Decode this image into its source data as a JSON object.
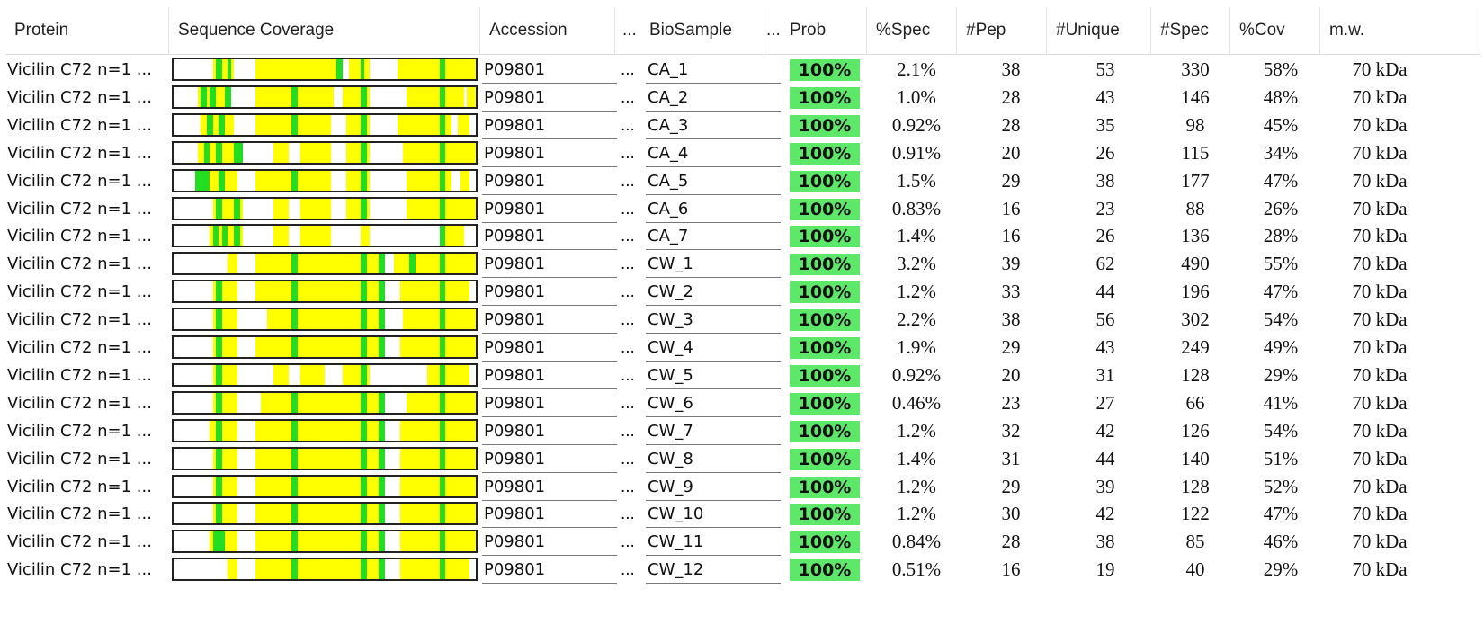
{
  "columns": {
    "protein": "Protein",
    "coverage": "Sequence Coverage",
    "accession": "Accession",
    "ellipsis1": "...",
    "biosample": "BioSample",
    "ellipsis2": "...",
    "prob": "Prob",
    "spec_pct": "%Spec",
    "pep": "#Pep",
    "unique": "#Unique",
    "spec": "#Spec",
    "cov": "%Cov",
    "mw": "m.w."
  },
  "colors": {
    "coverage_yellow": "#ffff00",
    "coverage_green": "#22dd22",
    "prob_green": "#5ee86a"
  },
  "rows": [
    {
      "protein": "Vicilin C72 n=1 ...",
      "accession": "P09801",
      "dots": "...",
      "biosample": "CA_1",
      "prob": "100%",
      "spec_pct": "2.1%",
      "pep": "38",
      "unique": "53",
      "spec": "330",
      "cov": "58%",
      "mw": "70 kDa"
    },
    {
      "protein": "Vicilin C72 n=1 ...",
      "accession": "P09801",
      "dots": "...",
      "biosample": "CA_2",
      "prob": "100%",
      "spec_pct": "1.0%",
      "pep": "28",
      "unique": "43",
      "spec": "146",
      "cov": "48%",
      "mw": "70 kDa"
    },
    {
      "protein": "Vicilin C72 n=1 ...",
      "accession": "P09801",
      "dots": "...",
      "biosample": "CA_3",
      "prob": "100%",
      "spec_pct": "0.92%",
      "pep": "28",
      "unique": "35",
      "spec": "98",
      "cov": "45%",
      "mw": "70 kDa"
    },
    {
      "protein": "Vicilin C72 n=1 ...",
      "accession": "P09801",
      "dots": "...",
      "biosample": "CA_4",
      "prob": "100%",
      "spec_pct": "0.91%",
      "pep": "20",
      "unique": "26",
      "spec": "115",
      "cov": "34%",
      "mw": "70 kDa"
    },
    {
      "protein": "Vicilin C72 n=1 ...",
      "accession": "P09801",
      "dots": "...",
      "biosample": "CA_5",
      "prob": "100%",
      "spec_pct": "1.5%",
      "pep": "29",
      "unique": "38",
      "spec": "177",
      "cov": "47%",
      "mw": "70 kDa"
    },
    {
      "protein": "Vicilin C72 n=1 ...",
      "accession": "P09801",
      "dots": "...",
      "biosample": "CA_6",
      "prob": "100%",
      "spec_pct": "0.83%",
      "pep": "16",
      "unique": "23",
      "spec": "88",
      "cov": "26%",
      "mw": "70 kDa"
    },
    {
      "protein": "Vicilin C72 n=1 ...",
      "accession": "P09801",
      "dots": "...",
      "biosample": "CA_7",
      "prob": "100%",
      "spec_pct": "1.4%",
      "pep": "16",
      "unique": "26",
      "spec": "136",
      "cov": "28%",
      "mw": "70 kDa"
    },
    {
      "protein": "Vicilin C72 n=1 ...",
      "accession": "P09801",
      "dots": "...",
      "biosample": "CW_1",
      "prob": "100%",
      "spec_pct": "3.2%",
      "pep": "39",
      "unique": "62",
      "spec": "490",
      "cov": "55%",
      "mw": "70 kDa"
    },
    {
      "protein": "Vicilin C72 n=1 ...",
      "accession": "P09801",
      "dots": "...",
      "biosample": "CW_2",
      "prob": "100%",
      "spec_pct": "1.2%",
      "pep": "33",
      "unique": "44",
      "spec": "196",
      "cov": "47%",
      "mw": "70 kDa"
    },
    {
      "protein": "Vicilin C72 n=1 ...",
      "accession": "P09801",
      "dots": "...",
      "biosample": "CW_3",
      "prob": "100%",
      "spec_pct": "2.2%",
      "pep": "38",
      "unique": "56",
      "spec": "302",
      "cov": "54%",
      "mw": "70 kDa"
    },
    {
      "protein": "Vicilin C72 n=1 ...",
      "accession": "P09801",
      "dots": "...",
      "biosample": "CW_4",
      "prob": "100%",
      "spec_pct": "1.9%",
      "pep": "29",
      "unique": "43",
      "spec": "249",
      "cov": "49%",
      "mw": "70 kDa"
    },
    {
      "protein": "Vicilin C72 n=1 ...",
      "accession": "P09801",
      "dots": "...",
      "biosample": "CW_5",
      "prob": "100%",
      "spec_pct": "0.92%",
      "pep": "20",
      "unique": "31",
      "spec": "128",
      "cov": "29%",
      "mw": "70 kDa"
    },
    {
      "protein": "Vicilin C72 n=1 ...",
      "accession": "P09801",
      "dots": "...",
      "biosample": "CW_6",
      "prob": "100%",
      "spec_pct": "0.46%",
      "pep": "23",
      "unique": "27",
      "spec": "66",
      "cov": "41%",
      "mw": "70 kDa"
    },
    {
      "protein": "Vicilin C72 n=1 ...",
      "accession": "P09801",
      "dots": "...",
      "biosample": "CW_7",
      "prob": "100%",
      "spec_pct": "1.2%",
      "pep": "32",
      "unique": "42",
      "spec": "126",
      "cov": "54%",
      "mw": "70 kDa"
    },
    {
      "protein": "Vicilin C72 n=1 ...",
      "accession": "P09801",
      "dots": "...",
      "biosample": "CW_8",
      "prob": "100%",
      "spec_pct": "1.4%",
      "pep": "31",
      "unique": "44",
      "spec": "140",
      "cov": "51%",
      "mw": "70 kDa"
    },
    {
      "protein": "Vicilin C72 n=1 ...",
      "accession": "P09801",
      "dots": "...",
      "biosample": "CW_9",
      "prob": "100%",
      "spec_pct": "1.2%",
      "pep": "29",
      "unique": "39",
      "spec": "128",
      "cov": "52%",
      "mw": "70 kDa"
    },
    {
      "protein": "Vicilin C72 n=1 ...",
      "accession": "P09801",
      "dots": "...",
      "biosample": "CW_10",
      "prob": "100%",
      "spec_pct": "1.2%",
      "pep": "30",
      "unique": "42",
      "spec": "122",
      "cov": "47%",
      "mw": "70 kDa"
    },
    {
      "protein": "Vicilin C72 n=1 ...",
      "accession": "P09801",
      "dots": "...",
      "biosample": "CW_11",
      "prob": "100%",
      "spec_pct": "0.84%",
      "pep": "28",
      "unique": "38",
      "spec": "85",
      "cov": "46%",
      "mw": "70 kDa"
    },
    {
      "protein": "Vicilin C72 n=1 ...",
      "accession": "P09801",
      "dots": "...",
      "biosample": "CW_12",
      "prob": "100%",
      "spec_pct": "0.51%",
      "pep": "16",
      "unique": "19",
      "spec": "40",
      "cov": "29%",
      "mw": "70 kDa"
    }
  ]
}
